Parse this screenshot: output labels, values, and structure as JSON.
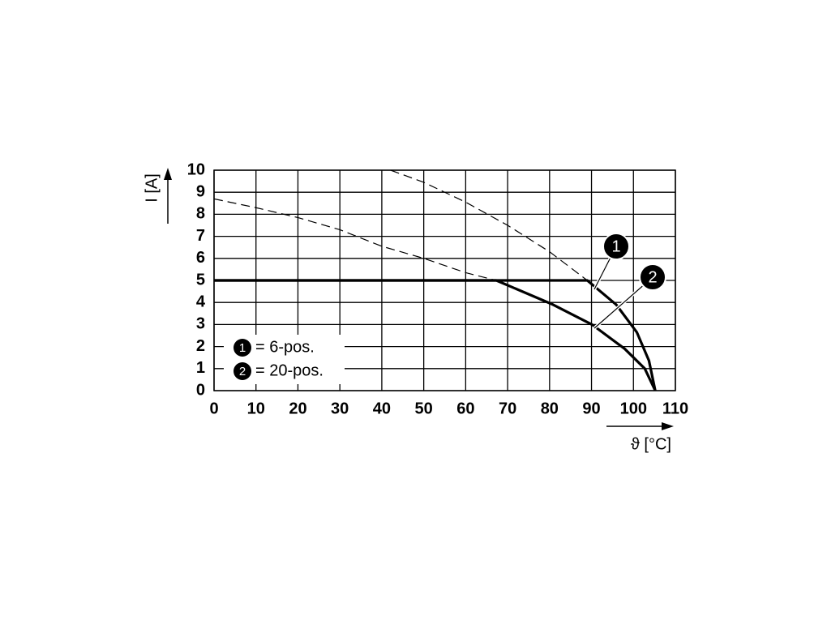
{
  "chart_data": {
    "type": "line",
    "xlabel": "ϑ [°C]",
    "ylabel": "I [A]",
    "xlim": [
      0,
      110
    ],
    "xticks": [
      0,
      10,
      20,
      30,
      40,
      50,
      60,
      70,
      80,
      90,
      100,
      110
    ],
    "ylim": [
      0,
      10
    ],
    "yticks": [
      0,
      1,
      2,
      3,
      4,
      5,
      6,
      7,
      8,
      9,
      10
    ],
    "grid": true,
    "legend": "lower left",
    "series": [
      {
        "name": "= 6-pos.",
        "marker": "1",
        "color": "#000000",
        "x": [
          0,
          89,
          95.9,
          100.8,
          103.7,
          105.2
        ],
        "values": [
          5,
          5,
          3.9,
          2.65,
          1.36,
          0
        ],
        "dashed_x": [
          42.1,
          50,
          60,
          70,
          80,
          89
        ],
        "dashed_values": [
          10,
          9.45,
          8.55,
          7.5,
          6.3,
          5
        ]
      },
      {
        "name": "= 20-pos.",
        "marker": "2",
        "color": "#000000",
        "x": [
          0,
          67.3,
          80.5,
          90.1,
          97.9,
          102.7,
          105.2
        ],
        "values": [
          5,
          5,
          3.93,
          3,
          1.9,
          1,
          0
        ],
        "dashed_x": [
          0,
          10,
          20,
          30,
          40,
          50,
          60,
          67.3
        ],
        "dashed_values": [
          8.7,
          8.3,
          7.85,
          7.3,
          6.55,
          6.0,
          5.35,
          5
        ]
      }
    ]
  }
}
